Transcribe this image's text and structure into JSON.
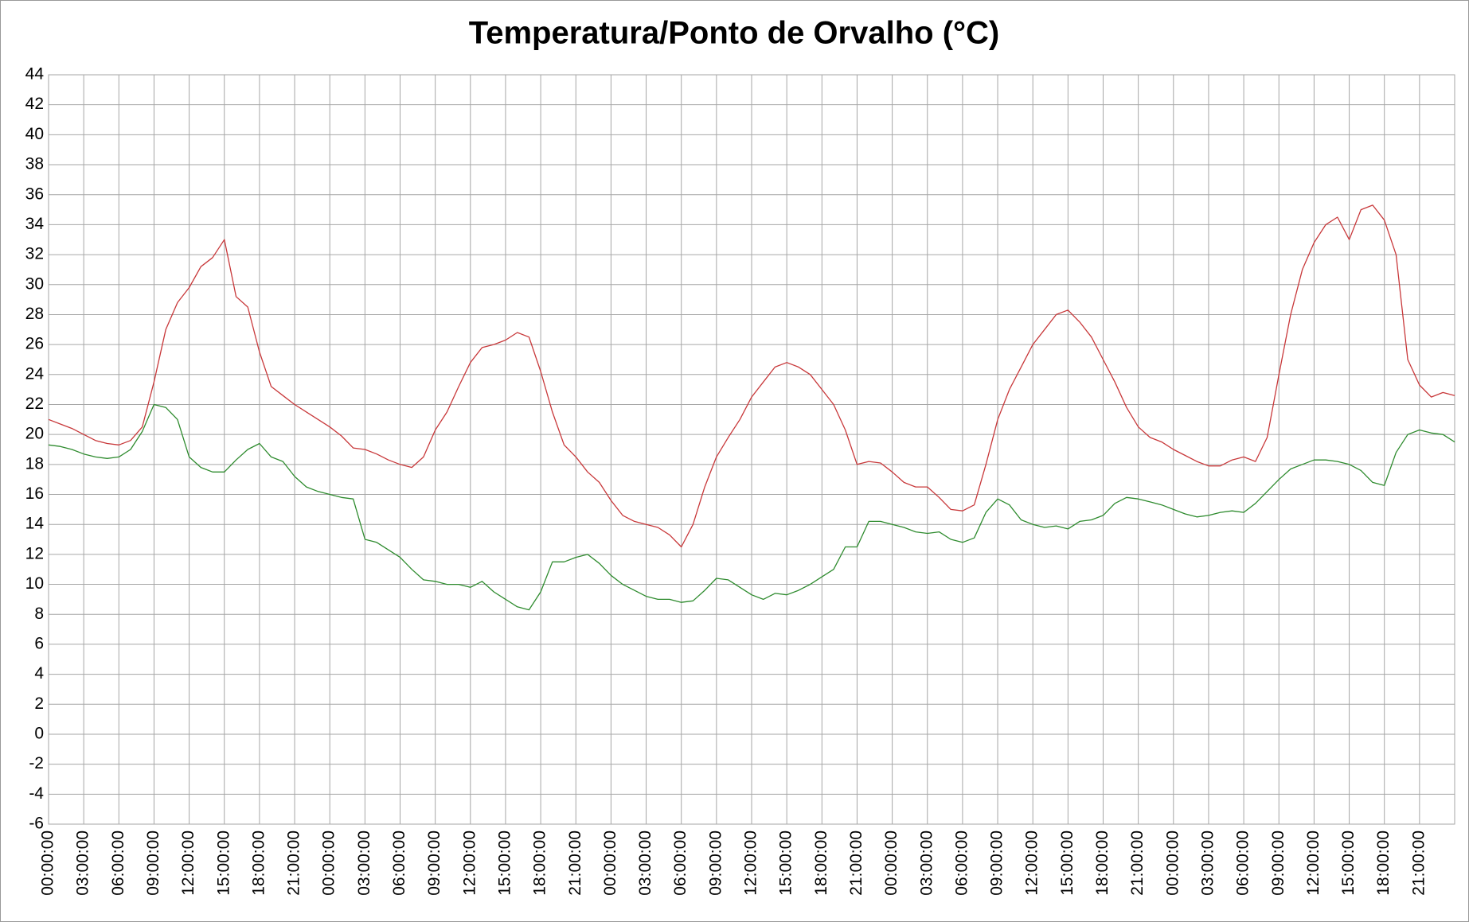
{
  "chart_data": {
    "type": "line",
    "title": "Temperatura/Ponto de Orvalho (°C)",
    "categories": [
      "00:00:00",
      null,
      null,
      "03:00:00",
      null,
      null,
      "06:00:00",
      null,
      null,
      "09:00:00",
      null,
      null,
      "12:00:00",
      null,
      null,
      "15:00:00",
      null,
      null,
      "18:00:00",
      null,
      null,
      "21:00:00",
      null,
      null,
      "00:00:00",
      null,
      null,
      "03:00:00",
      null,
      null,
      "06:00:00",
      null,
      null,
      "09:00:00",
      null,
      null,
      "12:00:00",
      null,
      null,
      "15:00:00",
      null,
      null,
      "18:00:00",
      null,
      null,
      "21:00:00",
      null,
      null,
      "00:00:00",
      null,
      null,
      "03:00:00",
      null,
      null,
      "06:00:00",
      null,
      null,
      "09:00:00",
      null,
      null,
      "12:00:00",
      null,
      null,
      "15:00:00",
      null,
      null,
      "18:00:00",
      null,
      null,
      "21:00:00",
      null,
      null,
      "00:00:00",
      null,
      null,
      "03:00:00",
      null,
      null,
      "06:00:00",
      null,
      null,
      "09:00:00",
      null,
      null,
      "12:00:00",
      null,
      null,
      "15:00:00",
      null,
      null,
      "18:00:00",
      null,
      null,
      "21:00:00",
      null,
      null,
      "00:00:00",
      null,
      null,
      "03:00:00",
      null,
      null,
      "06:00:00",
      null,
      null,
      "09:00:00",
      null,
      null,
      "12:00:00",
      null,
      null,
      "15:00:00",
      null,
      null,
      "18:00:00",
      null,
      null,
      "21:00:00",
      null,
      null,
      null
    ],
    "series": [
      {
        "color": "#c8383a",
        "values": [
          21.0,
          20.7,
          20.4,
          20.0,
          19.6,
          19.4,
          19.3,
          19.6,
          20.5,
          23.5,
          27.0,
          28.8,
          29.8,
          31.2,
          31.8,
          33.0,
          29.2,
          28.5,
          25.5,
          23.2,
          22.6,
          22.0,
          21.5,
          21.0,
          20.5,
          19.9,
          19.1,
          19.0,
          18.7,
          18.3,
          18.0,
          17.8,
          18.5,
          20.3,
          21.5,
          23.2,
          24.8,
          25.8,
          26.0,
          26.3,
          26.8,
          26.5,
          24.2,
          21.5,
          19.3,
          18.5,
          17.5,
          16.8,
          15.6,
          14.6,
          14.2,
          14.0,
          13.8,
          13.3,
          12.5,
          14.0,
          16.5,
          18.5,
          19.8,
          21.0,
          22.5,
          23.5,
          24.5,
          24.8,
          24.5,
          24.0,
          23.0,
          22.0,
          20.3,
          18.0,
          18.2,
          18.1,
          17.5,
          16.8,
          16.5,
          16.5,
          15.8,
          15.0,
          14.9,
          15.3,
          18.0,
          21.0,
          23.0,
          24.5,
          26.0,
          27.0,
          28.0,
          28.3,
          27.5,
          26.5,
          25.0,
          23.5,
          21.8,
          20.5,
          19.8,
          19.5,
          19.0,
          18.6,
          18.2,
          17.9,
          17.9,
          18.3,
          18.5,
          18.2,
          19.8,
          24.0,
          28.0,
          31.0,
          32.8,
          34.0,
          34.5,
          33.0,
          35.0,
          35.3,
          34.3,
          32.0,
          25.0,
          23.3,
          22.5,
          22.8,
          22.6
        ]
      },
      {
        "color": "#2e8b2e",
        "values": [
          19.3,
          19.2,
          19.0,
          18.7,
          18.5,
          18.4,
          18.5,
          19.0,
          20.2,
          22.0,
          21.8,
          21.0,
          18.5,
          17.8,
          17.5,
          17.5,
          18.3,
          19.0,
          19.4,
          18.5,
          18.2,
          17.2,
          16.5,
          16.2,
          16.0,
          15.8,
          15.7,
          13.0,
          12.8,
          12.3,
          11.8,
          11.0,
          10.3,
          10.2,
          10.0,
          10.0,
          9.8,
          10.2,
          9.5,
          9.0,
          8.5,
          8.3,
          9.5,
          11.5,
          11.5,
          11.8,
          12.0,
          11.4,
          10.6,
          10.0,
          9.6,
          9.2,
          9.0,
          9.0,
          8.8,
          8.9,
          9.6,
          10.4,
          10.3,
          9.8,
          9.3,
          9.0,
          9.4,
          9.3,
          9.6,
          10.0,
          10.5,
          11.0,
          12.5,
          12.5,
          14.2,
          14.2,
          14.0,
          13.8,
          13.5,
          13.4,
          13.5,
          13.0,
          12.8,
          13.1,
          14.8,
          15.7,
          15.3,
          14.3,
          14.0,
          13.8,
          13.9,
          13.7,
          14.2,
          14.3,
          14.6,
          15.4,
          15.8,
          15.7,
          15.5,
          15.3,
          15.0,
          14.7,
          14.5,
          14.6,
          14.8,
          14.9,
          14.8,
          15.4,
          16.2,
          17.0,
          17.7,
          18.0,
          18.3,
          18.3,
          18.2,
          18.0,
          17.6,
          16.8,
          16.6,
          18.8,
          20.0,
          20.3,
          20.1,
          20.0,
          19.5
        ]
      }
    ],
    "ylim": [
      -6,
      44
    ],
    "yticks": [
      -6,
      -4,
      -2,
      0,
      2,
      4,
      6,
      8,
      10,
      12,
      14,
      16,
      18,
      20,
      22,
      24,
      26,
      28,
      30,
      32,
      34,
      36,
      38,
      40,
      42,
      44
    ],
    "grid": true
  }
}
